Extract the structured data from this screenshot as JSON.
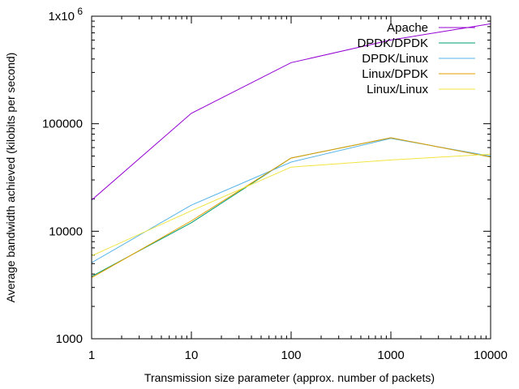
{
  "chart_data": {
    "type": "line",
    "x_scale": "log",
    "y_scale": "log",
    "xlabel": "Transmission size parameter (approx. number of packets)",
    "ylabel": "Average bandwidth achieved (kilobits per second)",
    "xlim": [
      1,
      10000
    ],
    "ylim": [
      1000,
      1000000
    ],
    "x": [
      1,
      10,
      100,
      1000,
      10000
    ],
    "x_tick_labels": [
      "1",
      "10",
      "100",
      "1000",
      "10000"
    ],
    "y_ticks": [
      1000,
      10000,
      100000,
      1000000
    ],
    "y_tick_labels": [
      {
        "text": "1000"
      },
      {
        "text": "10000"
      },
      {
        "text": "100000"
      },
      {
        "text": "1x10",
        "sup": "6"
      }
    ],
    "grid": false,
    "legend_position": "top-right",
    "series": [
      {
        "name": "Apache",
        "color": "#9400d3",
        "values": [
          19500,
          125000,
          370000,
          600000,
          850000
        ]
      },
      {
        "name": "DPDK/DPDK",
        "color": "#009e73",
        "values": [
          3800,
          12000,
          48000,
          74000,
          49000
        ]
      },
      {
        "name": "DPDK/Linux",
        "color": "#56b4e9",
        "values": [
          5100,
          17500,
          44000,
          73000,
          50000
        ]
      },
      {
        "name": "Linux/DPDK",
        "color": "#e69f00",
        "values": [
          3700,
          12500,
          48000,
          74000,
          49000
        ]
      },
      {
        "name": "Linux/Linux",
        "color": "#f0e442",
        "values": [
          5900,
          15500,
          39500,
          46000,
          52000
        ]
      }
    ]
  }
}
